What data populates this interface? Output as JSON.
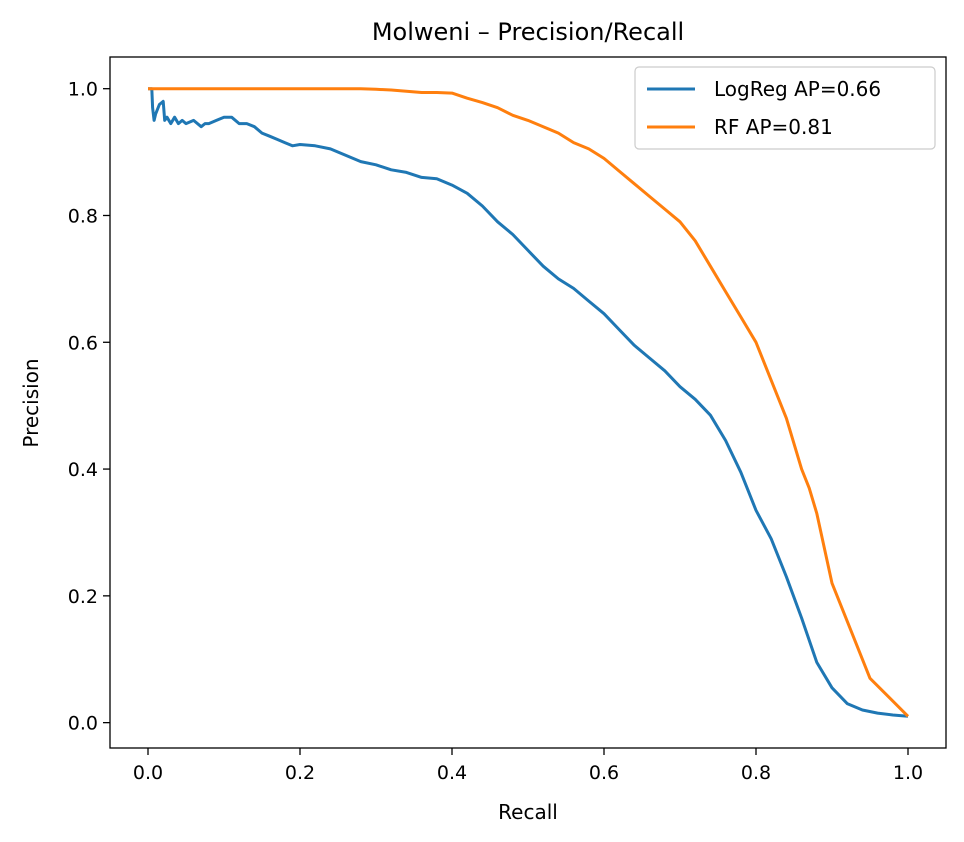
{
  "chart_data": {
    "type": "line",
    "title": "Molweni – Precision/Recall",
    "xlabel": "Recall",
    "ylabel": "Precision",
    "xlim": [
      -0.05,
      1.05
    ],
    "ylim": [
      -0.04,
      1.05
    ],
    "xticks": [
      "0.0",
      "0.2",
      "0.4",
      "0.6",
      "0.8",
      "1.0"
    ],
    "yticks": [
      "0.0",
      "0.2",
      "0.4",
      "0.6",
      "0.8",
      "1.0"
    ],
    "grid": false,
    "legend_position": "top-right",
    "series": [
      {
        "name": "LogReg AP=0.66",
        "color": "#1f77b4",
        "x": [
          0.0,
          0.005,
          0.006,
          0.008,
          0.01,
          0.015,
          0.02,
          0.022,
          0.025,
          0.03,
          0.035,
          0.04,
          0.045,
          0.05,
          0.06,
          0.07,
          0.075,
          0.08,
          0.09,
          0.1,
          0.11,
          0.12,
          0.13,
          0.14,
          0.15,
          0.16,
          0.17,
          0.18,
          0.19,
          0.2,
          0.22,
          0.24,
          0.26,
          0.28,
          0.3,
          0.32,
          0.34,
          0.36,
          0.38,
          0.4,
          0.42,
          0.44,
          0.46,
          0.48,
          0.5,
          0.52,
          0.54,
          0.56,
          0.58,
          0.6,
          0.62,
          0.64,
          0.66,
          0.68,
          0.7,
          0.72,
          0.74,
          0.76,
          0.78,
          0.8,
          0.82,
          0.84,
          0.86,
          0.88,
          0.9,
          0.92,
          0.94,
          0.96,
          0.98,
          1.0
        ],
        "y": [
          1.0,
          1.0,
          0.97,
          0.95,
          0.96,
          0.975,
          0.98,
          0.95,
          0.955,
          0.945,
          0.955,
          0.945,
          0.95,
          0.945,
          0.95,
          0.94,
          0.945,
          0.945,
          0.95,
          0.955,
          0.955,
          0.945,
          0.945,
          0.94,
          0.93,
          0.925,
          0.92,
          0.915,
          0.91,
          0.912,
          0.91,
          0.905,
          0.895,
          0.885,
          0.88,
          0.872,
          0.868,
          0.86,
          0.858,
          0.848,
          0.835,
          0.815,
          0.79,
          0.77,
          0.745,
          0.72,
          0.7,
          0.685,
          0.665,
          0.645,
          0.62,
          0.595,
          0.575,
          0.555,
          0.53,
          0.51,
          0.485,
          0.445,
          0.395,
          0.335,
          0.29,
          0.23,
          0.165,
          0.095,
          0.055,
          0.03,
          0.02,
          0.015,
          0.012,
          0.01
        ]
      },
      {
        "name": "RF AP=0.81",
        "color": "#ff7f0e",
        "x": [
          0.0,
          0.05,
          0.1,
          0.15,
          0.2,
          0.25,
          0.28,
          0.3,
          0.32,
          0.34,
          0.36,
          0.38,
          0.4,
          0.42,
          0.44,
          0.46,
          0.48,
          0.5,
          0.52,
          0.54,
          0.56,
          0.58,
          0.6,
          0.62,
          0.64,
          0.66,
          0.68,
          0.7,
          0.72,
          0.74,
          0.76,
          0.78,
          0.8,
          0.82,
          0.84,
          0.86,
          0.87,
          0.88,
          0.9,
          0.92,
          0.95,
          1.0
        ],
        "y": [
          1.0,
          1.0,
          1.0,
          1.0,
          1.0,
          1.0,
          1.0,
          0.999,
          0.998,
          0.996,
          0.994,
          0.994,
          0.993,
          0.985,
          0.978,
          0.97,
          0.958,
          0.95,
          0.94,
          0.93,
          0.915,
          0.905,
          0.89,
          0.87,
          0.85,
          0.83,
          0.81,
          0.79,
          0.76,
          0.72,
          0.68,
          0.64,
          0.6,
          0.54,
          0.48,
          0.4,
          0.37,
          0.33,
          0.22,
          0.16,
          0.07,
          0.01
        ]
      }
    ]
  }
}
